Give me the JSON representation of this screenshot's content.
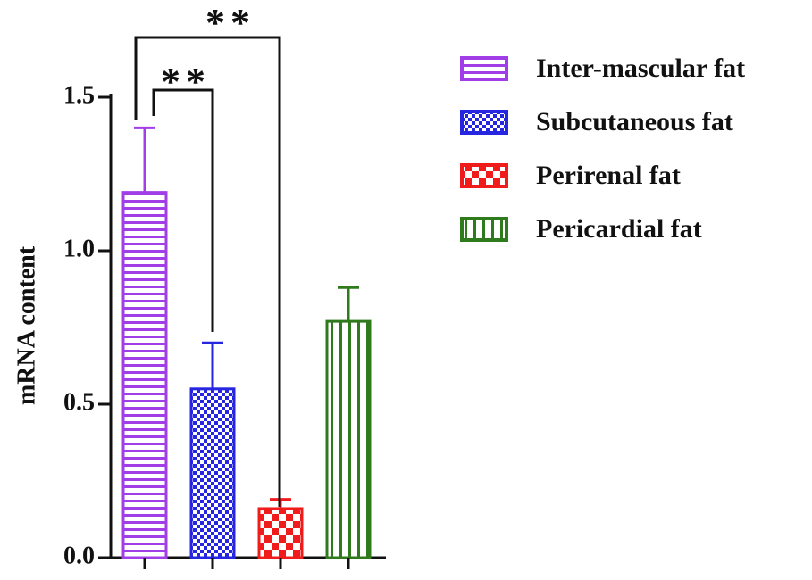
{
  "chart_data": {
    "type": "bar",
    "y_label": "mRNA content",
    "series": [
      {
        "name": "Inter-mascular fat",
        "color": "#a23ee8",
        "pattern": "horizontal",
        "values": [
          1.19
        ],
        "errors": [
          0.21
        ]
      },
      {
        "name": "Subcutaneous fat",
        "color": "#2626e0",
        "pattern": "checker-small",
        "values": [
          0.55
        ],
        "errors": [
          0.15
        ]
      },
      {
        "name": "Perirenal fat",
        "color": "#f01c1c",
        "pattern": "checker-large",
        "values": [
          0.16
        ],
        "errors": [
          0.03
        ]
      },
      {
        "name": "Pericardial fat",
        "color": "#2f7a1c",
        "pattern": "vertical",
        "values": [
          0.77
        ],
        "errors": [
          0.11
        ]
      }
    ],
    "ylim": [
      0,
      1.5
    ],
    "yticks": [
      {
        "value": 0,
        "label": "0.0"
      },
      0.5,
      {
        "value": 1,
        "label": "1.0"
      },
      1.5
    ],
    "annotations": [
      {
        "text": "**"
      },
      {
        "text": "**"
      }
    ],
    "legend": "right"
  }
}
